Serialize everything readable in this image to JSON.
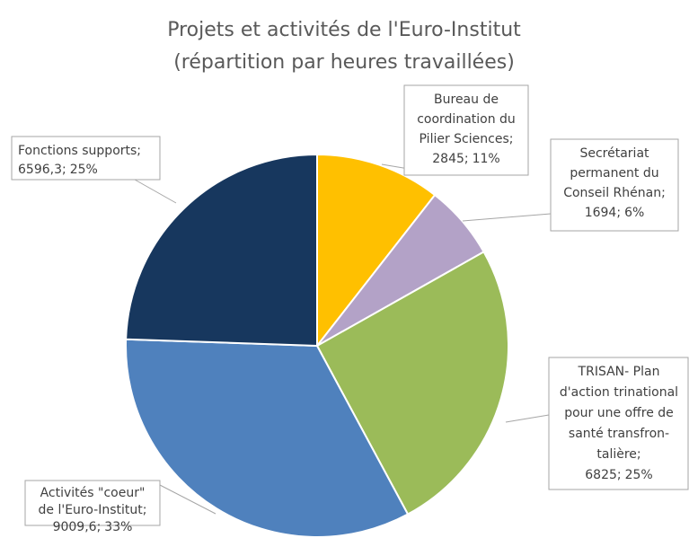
{
  "chart_data": {
    "type": "pie",
    "title": [
      "Projets et activités de l'Euro-Institut",
      "(répartition par heures travaillées)"
    ],
    "categories": [
      [
        "Bureau de",
        "coordination du",
        "Pilier Sciences"
      ],
      [
        "Secrétariat",
        "permanent du",
        "Conseil Rhénan"
      ],
      [
        "TRISAN- Plan",
        "d'action trinational",
        "pour une offre de",
        "santé transfron-",
        "talière"
      ],
      [
        "Activités \"coeur\"",
        "de l'Euro-Institut"
      ],
      [
        "Fonctions supports"
      ]
    ],
    "values": [
      2845,
      1694,
      6825,
      9009.6,
      6596.3
    ],
    "value_labels": [
      "2845",
      "1694",
      "6825",
      "9009,6",
      "6596,3"
    ],
    "percents": [
      11,
      6,
      25,
      33,
      25
    ],
    "percent_labels": [
      "11%",
      "6%",
      "25%",
      "33%",
      "25%"
    ],
    "separator": ";",
    "colors": [
      "#FFC000",
      "#B3A2C7",
      "#9BBB59",
      "#4F81BD",
      "#17375E"
    ]
  }
}
